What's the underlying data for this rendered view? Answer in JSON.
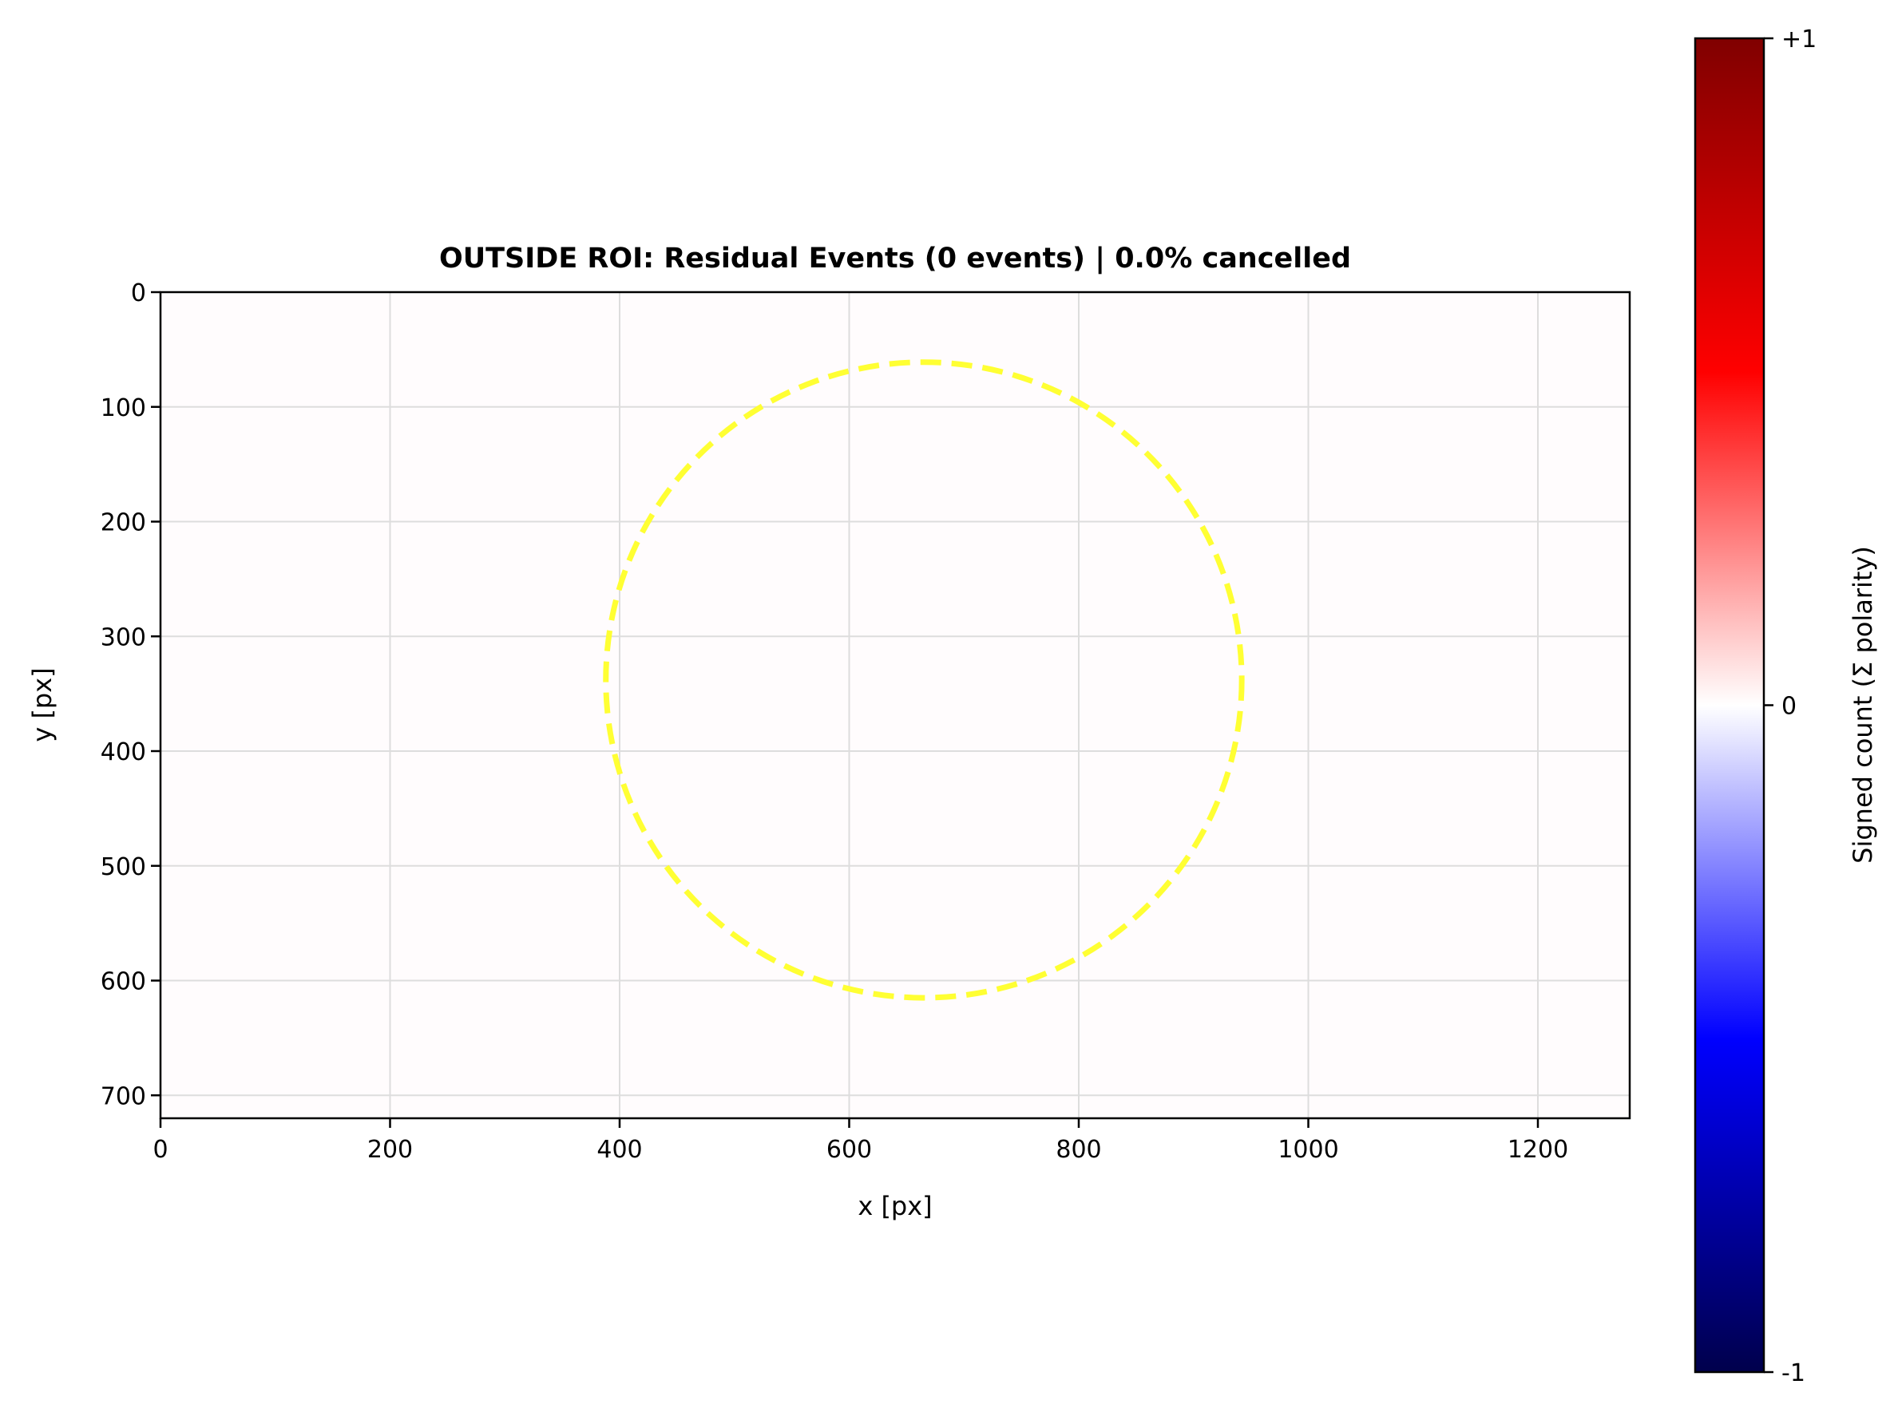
{
  "chart_data": {
    "type": "heatmap",
    "title": "OUTSIDE ROI: Residual Events (0 events) | 0.0% cancelled",
    "xlabel": "x [px]",
    "ylabel": "y [px]",
    "xlim": [
      0,
      1280
    ],
    "ylim": [
      720,
      0
    ],
    "x_ticks": [
      0,
      200,
      400,
      600,
      800,
      1000,
      1200
    ],
    "y_ticks": [
      0,
      100,
      200,
      300,
      400,
      500,
      600,
      700
    ],
    "grid": true,
    "values": "all zero (no residual events)",
    "roi_circle": {
      "center_x": 665,
      "center_y": 338,
      "radius": 277,
      "style": "dashed",
      "color": "#ffff33"
    },
    "colorbar": {
      "label": "Signed count (Σ polarity)",
      "range": [
        -1,
        1
      ],
      "ticks": [
        {
          "value": 1,
          "label": "+1"
        },
        {
          "value": 0,
          "label": "0"
        },
        {
          "value": -1,
          "label": "-1"
        }
      ],
      "colormap": "seismic",
      "colors": [
        "#00004c",
        "#0000ff",
        "#ffffff",
        "#ff0000",
        "#800000"
      ]
    },
    "background_color": "#fffcfd"
  }
}
